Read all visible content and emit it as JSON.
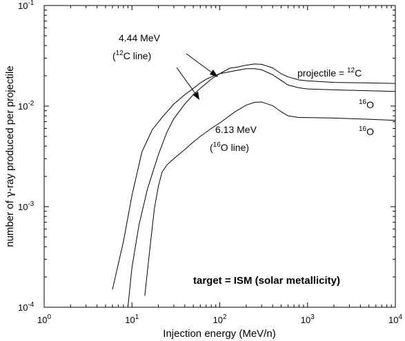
{
  "chart_data": {
    "type": "line",
    "xlabel": "Injection energy (MeV/n)",
    "ylabel_parts": [
      "number of ",
      "γ",
      "-ray produced per projectile"
    ],
    "xscale": "log",
    "yscale": "log",
    "xlim": [
      1,
      10000
    ],
    "ylim": [
      0.0001,
      0.1
    ],
    "x_ticks": [
      {
        "base": "10",
        "exp": "0"
      },
      {
        "base": "10",
        "exp": "1"
      },
      {
        "base": "10",
        "exp": "2"
      },
      {
        "base": "10",
        "exp": "3"
      },
      {
        "base": "10",
        "exp": "4"
      }
    ],
    "y_ticks": [
      {
        "base": "10",
        "exp": "-4"
      },
      {
        "base": "10",
        "exp": "-3"
      },
      {
        "base": "10",
        "exp": "-2"
      },
      {
        "base": "10",
        "exp": "-1"
      }
    ],
    "series": [
      {
        "x": [
          6,
          8,
          10,
          13,
          17,
          22,
          30,
          40,
          50,
          60,
          70,
          80,
          100,
          130,
          160,
          200,
          250,
          300,
          400,
          500,
          600,
          800,
          1000,
          2000,
          5000,
          10000
        ],
        "y": [
          0.00015,
          0.00045,
          0.0013,
          0.0035,
          0.0058,
          0.0077,
          0.0105,
          0.013,
          0.015,
          0.017,
          0.0185,
          0.0195,
          0.021,
          0.0238,
          0.0245,
          0.0255,
          0.0262,
          0.026,
          0.024,
          0.021,
          0.0195,
          0.0182,
          0.0178,
          0.0172,
          0.017,
          0.0168
        ]
      },
      {
        "x": [
          9,
          10,
          12,
          15,
          20,
          25,
          30,
          40,
          50,
          60,
          80,
          100,
          150,
          200,
          250,
          300,
          400,
          500,
          600,
          800,
          1000,
          2000,
          5000,
          10000
        ],
        "y": [
          0.0001,
          0.00025,
          0.00065,
          0.0015,
          0.0033,
          0.0055,
          0.0075,
          0.0105,
          0.013,
          0.015,
          0.0185,
          0.021,
          0.0225,
          0.0235,
          0.0235,
          0.023,
          0.0205,
          0.018,
          0.0162,
          0.0152,
          0.0148,
          0.0145,
          0.0142,
          0.014
        ]
      },
      {
        "x": [
          14,
          16,
          18,
          20,
          22,
          25,
          30,
          40,
          50,
          60,
          80,
          100,
          150,
          200,
          250,
          300,
          400,
          500,
          600,
          800,
          1000,
          2000,
          5000,
          10000
        ],
        "y": [
          0.00013,
          0.00038,
          0.00095,
          0.0016,
          0.0022,
          0.0026,
          0.003,
          0.0037,
          0.0044,
          0.005,
          0.006,
          0.0068,
          0.0088,
          0.0102,
          0.0109,
          0.011,
          0.0101,
          0.0088,
          0.008,
          0.0077,
          0.0077,
          0.0076,
          0.0074,
          0.0072
        ]
      }
    ],
    "annotations": {
      "c12_energy": "4.44 MeV",
      "c12_line": {
        "pre": "(",
        "sup": "12",
        "post": "C line)"
      },
      "o16_energy": "6.13 MeV",
      "o16_line": {
        "pre": "(",
        "sup": "16",
        "post": "O line)"
      },
      "projectile_c12": {
        "pre": "projectile = ",
        "sup": "12",
        "post": "C"
      },
      "o16_label_1": {
        "sup": "16",
        "post": "O"
      },
      "o16_label_2": {
        "sup": "16",
        "post": "O"
      },
      "target": "target = ISM (solar metallicity)"
    }
  }
}
